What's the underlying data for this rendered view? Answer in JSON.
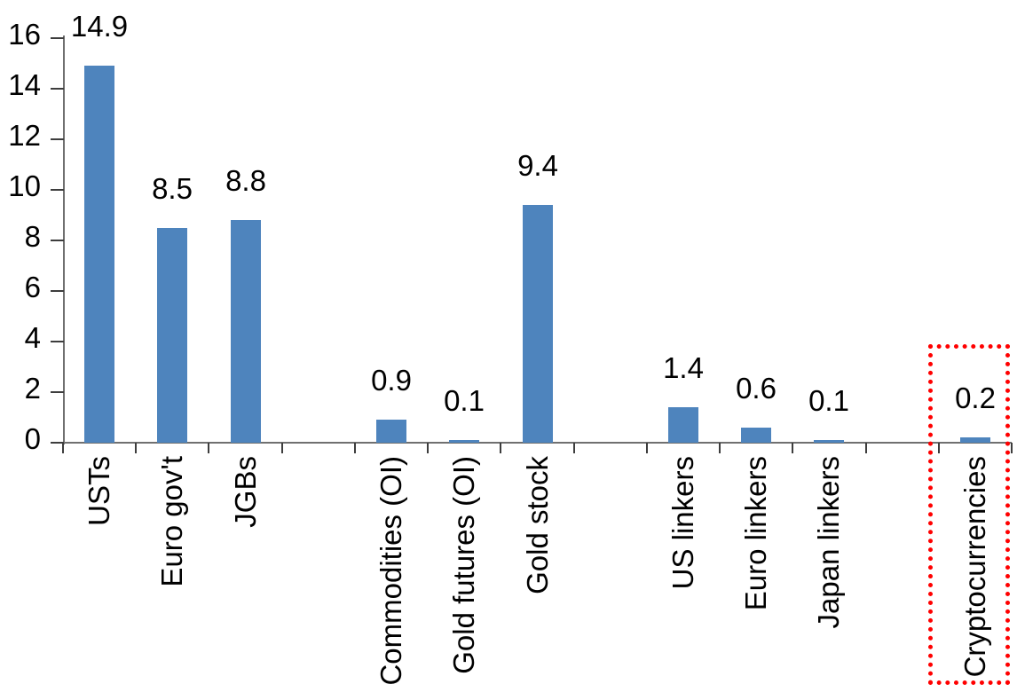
{
  "chart_data": {
    "type": "bar",
    "title": "",
    "xlabel": "",
    "ylabel": "",
    "categories": [
      "USTs",
      "Euro gov't",
      "JGBs",
      "",
      "Commodities (OI)",
      "Gold futures (OI)",
      "Gold stock",
      "",
      "US linkers",
      "Euro linkers",
      "Japan linkers",
      "",
      "Cryptocurrencies"
    ],
    "values": [
      14.9,
      8.5,
      8.8,
      null,
      0.9,
      0.1,
      9.4,
      null,
      1.4,
      0.6,
      0.1,
      null,
      0.2
    ],
    "value_labels": [
      "14.9",
      "8.5",
      "8.8",
      "",
      "0.9",
      "0.1",
      "9.4",
      "",
      "1.4",
      "0.6",
      "0.1",
      "",
      "0.2"
    ],
    "yticks": [
      0,
      2,
      4,
      6,
      8,
      10,
      12,
      14,
      16
    ],
    "ylim": [
      0,
      16
    ],
    "grid": false,
    "legend_position": "none",
    "bar_color": "#4E84BD",
    "axis_line_color": "#707070",
    "tick_mark_color": "#3d3d3d",
    "text_color": "#000000",
    "highlight": {
      "category": "Cryptocurrencies",
      "style": "dotted-rectangle",
      "color": "#FF0000"
    }
  }
}
